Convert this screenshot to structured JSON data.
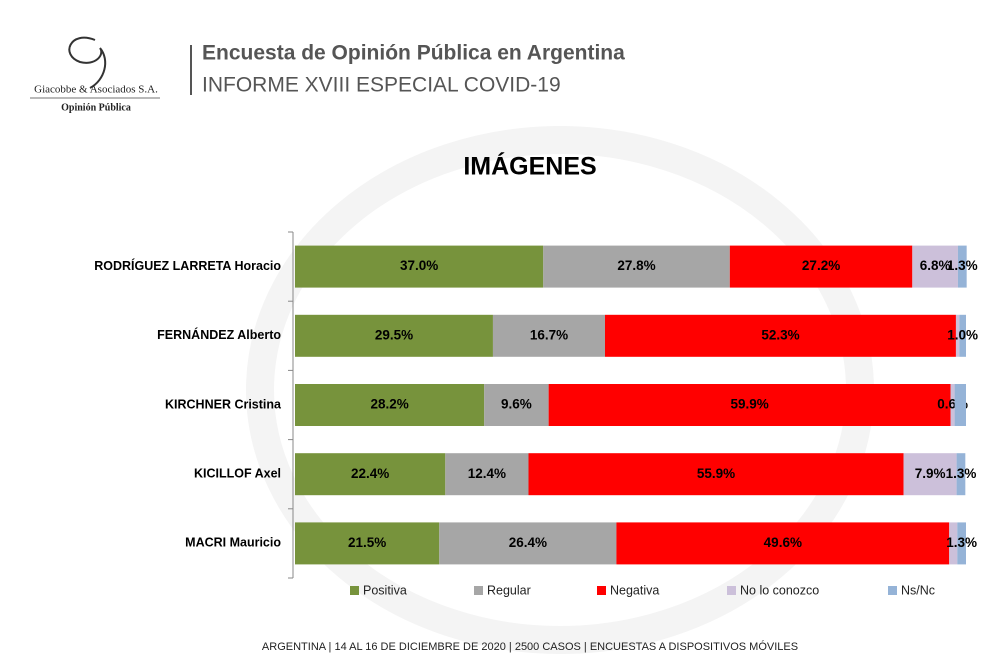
{
  "header": {
    "company": "Giacobbe & Asociados S.A.",
    "company_sub": "Opinión Pública",
    "title": "Encuesta de Opinión Pública en Argentina",
    "subtitle": "INFORME XVIII ESPECIAL COVID-19"
  },
  "chart_data": {
    "type": "stacked-bar-horizontal",
    "title": "IMÁGENES",
    "categories": [
      "RODRÍGUEZ LARRETA Horacio",
      "FERNÁNDEZ Alberto",
      "KIRCHNER Cristina",
      "KICILLOF Axel",
      "MACRI Mauricio"
    ],
    "xlim": [
      0,
      100
    ],
    "series": [
      {
        "name": "Positiva",
        "color": "#77933c",
        "values": [
          37.0,
          29.5,
          28.2,
          22.4,
          21.5
        ],
        "value_labels": [
          "37.0%",
          "29.5%",
          "28.2%",
          "22.4%",
          "21.5%"
        ]
      },
      {
        "name": "Regular",
        "color": "#a6a6a6",
        "values": [
          27.8,
          16.7,
          9.6,
          12.4,
          26.4
        ],
        "value_labels": [
          "27.8%",
          "16.7%",
          "9.6%",
          "12.4%",
          "26.4%"
        ]
      },
      {
        "name": "Negativa",
        "color": "#ff0000",
        "values": [
          27.2,
          52.3,
          59.9,
          55.9,
          49.6
        ],
        "value_labels": [
          "27.2%",
          "52.3%",
          "59.9%",
          "55.9%",
          "49.6%"
        ]
      },
      {
        "name": "No lo conozco",
        "color": "#ccc0da",
        "values": [
          6.8,
          0.5,
          0.6,
          7.9,
          1.2
        ],
        "value_labels": [
          "6.8%",
          null,
          "0.6%",
          "7.9%",
          null
        ]
      },
      {
        "name": "Ns/Nc",
        "color": "#95b3d7",
        "values": [
          1.3,
          1.0,
          1.7,
          1.3,
          1.3
        ],
        "value_labels": [
          "1.3%",
          "1.0%",
          null,
          "1.3%",
          "1.3%"
        ]
      }
    ]
  },
  "footer": "ARGENTINA | 14 AL 16 DE DICIEMBRE DE 2020 | 2500 CASOS | ENCUESTAS A DISPOSITIVOS MÓVILES"
}
